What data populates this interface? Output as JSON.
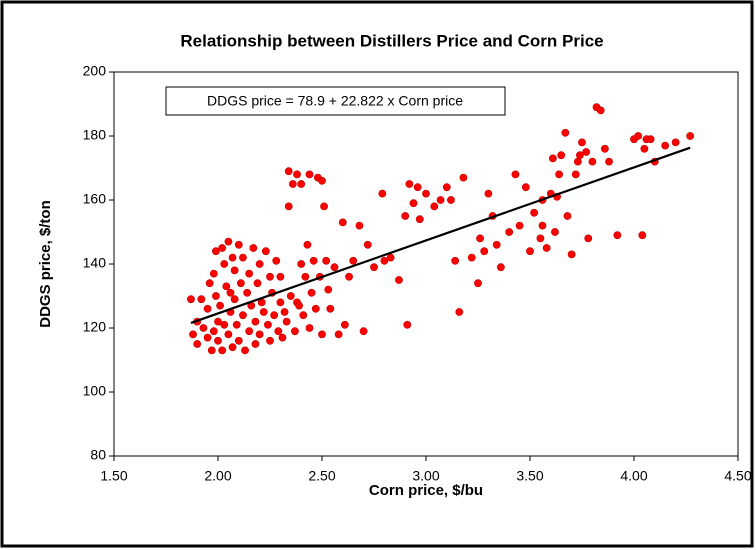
{
  "chart_data": {
    "type": "scatter",
    "title": "Relationship between Distillers Price and Corn Price",
    "xlabel": "Corn price, $/bu",
    "ylabel": "DDGS price, $/ton",
    "color": "#ff0000",
    "x": [
      1.87,
      1.88,
      1.9,
      1.9,
      1.92,
      1.93,
      1.95,
      1.95,
      1.96,
      1.97,
      1.98,
      1.98,
      1.99,
      2.0,
      2.0,
      2.01,
      2.02,
      2.02,
      2.03,
      2.03,
      2.04,
      2.05,
      2.05,
      2.06,
      2.07,
      2.07,
      2.08,
      2.08,
      2.09,
      2.1,
      2.1,
      2.11,
      2.12,
      2.12,
      2.13,
      2.14,
      2.15,
      2.15,
      2.16,
      2.17,
      2.18,
      2.18,
      2.19,
      2.2,
      2.2,
      2.21,
      2.22,
      2.23,
      2.24,
      2.25,
      2.25,
      2.26,
      2.27,
      2.28,
      2.29,
      2.3,
      2.3,
      2.31,
      2.32,
      2.33,
      2.34,
      2.34,
      2.35,
      2.36,
      2.37,
      2.38,
      2.38,
      2.39,
      2.4,
      2.4,
      2.41,
      2.42,
      2.43,
      2.44,
      2.44,
      2.45,
      2.46,
      2.47,
      2.48,
      2.49,
      2.5,
      2.5,
      2.51,
      2.52,
      2.53,
      2.54,
      2.56,
      2.58,
      2.6,
      2.61,
      2.63,
      2.65,
      2.68,
      2.7,
      2.72,
      2.75,
      2.79,
      2.8,
      2.83,
      2.87,
      2.9,
      2.91,
      2.92,
      2.94,
      2.96,
      2.97,
      3.0,
      3.04,
      3.07,
      3.1,
      3.12,
      3.14,
      3.16,
      3.18,
      3.22,
      3.25,
      3.26,
      3.28,
      3.3,
      3.32,
      3.34,
      3.36,
      3.4,
      3.43,
      3.45,
      3.48,
      3.5,
      3.52,
      3.55,
      3.56,
      3.58,
      3.6,
      3.61,
      3.62,
      3.64,
      3.65,
      3.67,
      3.68,
      3.7,
      3.72,
      3.73,
      3.75,
      3.77,
      3.78,
      3.8,
      3.82,
      3.84,
      3.86,
      3.88,
      3.92,
      4.0,
      4.02,
      4.04,
      4.05,
      4.06,
      4.08,
      4.1,
      4.15,
      4.2,
      4.27,
      3.63,
      3.74,
      3.56,
      2.06,
      1.99
    ],
    "values": [
      129,
      118,
      115,
      122,
      129,
      120,
      117,
      126,
      134,
      113,
      137,
      119,
      130,
      122,
      116,
      127,
      145,
      113,
      140,
      121,
      133,
      147,
      118,
      125,
      142,
      114,
      138,
      129,
      121,
      146,
      116,
      134,
      124,
      142,
      113,
      131,
      137,
      119,
      127,
      145,
      122,
      115,
      134,
      140,
      118,
      128,
      125,
      144,
      121,
      136,
      116,
      131,
      124,
      141,
      119,
      128,
      136,
      117,
      125,
      122,
      169,
      158,
      130,
      165,
      119,
      128,
      168,
      127,
      140,
      165,
      124,
      136,
      146,
      168,
      120,
      131,
      141,
      126,
      167,
      136,
      166,
      118,
      158,
      141,
      132,
      126,
      139,
      118,
      153,
      121,
      136,
      141,
      152,
      119,
      146,
      139,
      162,
      141,
      142,
      135,
      155,
      121,
      165,
      159,
      164,
      154,
      162,
      158,
      160,
      164,
      160,
      141,
      125,
      167,
      142,
      134,
      148,
      144,
      162,
      155,
      146,
      139,
      150,
      168,
      152,
      164,
      144,
      156,
      148,
      160,
      145,
      162,
      173,
      150,
      168,
      174,
      181,
      155,
      143,
      168,
      172,
      178,
      175,
      148,
      172,
      189,
      188,
      176,
      172,
      149,
      179,
      180,
      149,
      176,
      179,
      179,
      172,
      177,
      178,
      180,
      161,
      174,
      152,
      131,
      144
    ],
    "xlim": [
      1.5,
      4.5
    ],
    "xticks": [
      {
        "value": 1.5,
        "label": "1.50"
      },
      {
        "value": 2.0,
        "label": "2.00"
      },
      {
        "value": 2.5,
        "label": "2.50"
      },
      {
        "value": 3.0,
        "label": "3.00"
      },
      {
        "value": 3.5,
        "label": "3.50"
      },
      {
        "value": 4.0,
        "label": "4.00"
      },
      {
        "value": 4.5,
        "label": "4.50"
      }
    ],
    "ylim": [
      80,
      200
    ],
    "yticks": [
      80,
      100,
      120,
      140,
      160,
      180,
      200
    ],
    "grid": false,
    "trendline": {
      "label": "DDGS price = 78.9 + 22.822 x Corn price",
      "intercept": 78.9,
      "slope": 22.822,
      "x": [
        1.87,
        4.27
      ],
      "color": "#000000"
    }
  }
}
